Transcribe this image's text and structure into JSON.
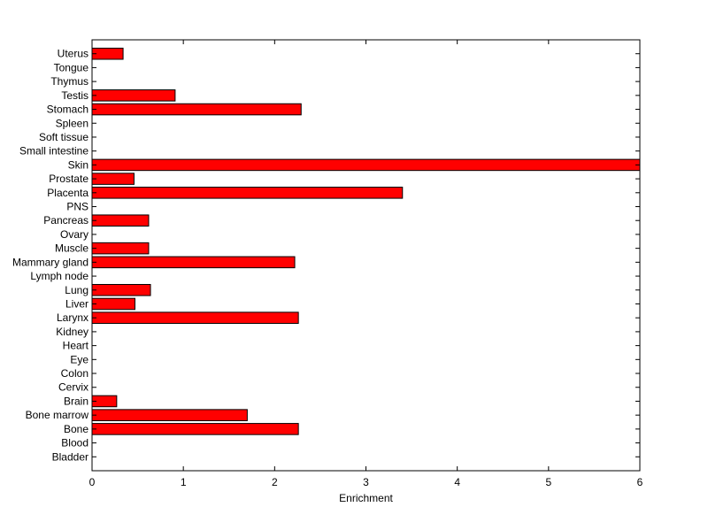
{
  "chart_data": {
    "type": "bar",
    "orientation": "horizontal",
    "title": "",
    "xlabel": "Enrichment",
    "ylabel": "",
    "xlim": [
      0,
      6
    ],
    "x_ticks": [
      0,
      1,
      2,
      3,
      4,
      5,
      6
    ],
    "grid": false,
    "bar_color": "#ff0000",
    "bar_edge_color": "#000000",
    "categories": [
      "Uterus",
      "Tongue",
      "Thymus",
      "Testis",
      "Stomach",
      "Spleen",
      "Soft tissue",
      "Small intestine",
      "Skin",
      "Prostate",
      "Placenta",
      "PNS",
      "Pancreas",
      "Ovary",
      "Muscle",
      "Mammary gland",
      "Lymph node",
      "Lung",
      "Liver",
      "Larynx",
      "Kidney",
      "Heart",
      "Eye",
      "Colon",
      "Cervix",
      "Brain",
      "Bone marrow",
      "Bone",
      "Blood",
      "Bladder"
    ],
    "values": [
      0.34,
      0,
      0,
      0.91,
      2.29,
      0,
      0,
      0,
      6.0,
      0.46,
      3.4,
      0,
      0.62,
      0,
      0.62,
      2.22,
      0,
      0.64,
      0.47,
      2.26,
      0,
      0,
      0,
      0,
      0,
      0.27,
      1.7,
      2.26,
      0,
      0
    ]
  }
}
